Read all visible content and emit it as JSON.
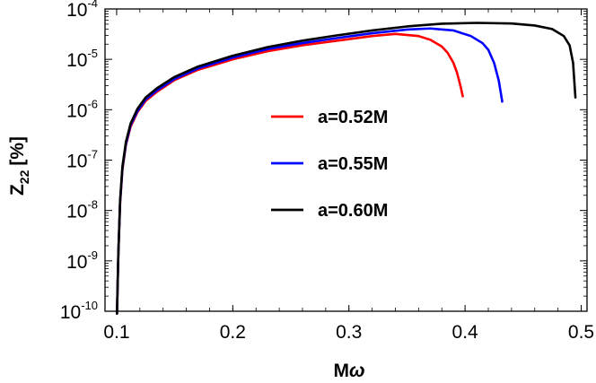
{
  "chart_data": {
    "type": "line",
    "xlabel_base": "M",
    "xlabel_symbol": "ω",
    "ylabel_base": "Z",
    "ylabel_sub": "22",
    "ylabel_unit": "[%]",
    "xlim": [
      0.09,
      0.505
    ],
    "ylim": [
      1e-10,
      0.0001
    ],
    "yscale": "log",
    "x_ticks": [
      {
        "value": 0.1,
        "label": "0.1"
      },
      {
        "value": 0.2,
        "label": "0.2"
      },
      {
        "value": 0.3,
        "label": "0.3"
      },
      {
        "value": 0.4,
        "label": "0.4"
      },
      {
        "value": 0.5,
        "label": "0.5"
      }
    ],
    "y_ticks": [
      {
        "value": 1e-10,
        "base": "10",
        "exp": "-10"
      },
      {
        "value": 1e-09,
        "base": "10",
        "exp": "-9"
      },
      {
        "value": 1e-08,
        "base": "10",
        "exp": "-8"
      },
      {
        "value": 1e-07,
        "base": "10",
        "exp": "-7"
      },
      {
        "value": 1e-06,
        "base": "10",
        "exp": "-6"
      },
      {
        "value": 1e-05,
        "base": "10",
        "exp": "-5"
      },
      {
        "value": 0.0001,
        "base": "10",
        "exp": "-4"
      }
    ],
    "legend_position": "center",
    "grid": false,
    "series": [
      {
        "name": "a=0.52M",
        "color": "#ff0000",
        "x": [
          0.1003,
          0.1015,
          0.103,
          0.105,
          0.108,
          0.112,
          0.118,
          0.125,
          0.135,
          0.15,
          0.17,
          0.2,
          0.23,
          0.26,
          0.29,
          0.32,
          0.34,
          0.36,
          0.37,
          0.38,
          0.385,
          0.39,
          0.393,
          0.396,
          0.398
        ],
        "y": [
          9e-11,
          1.4e-09,
          1.4e-08,
          6.5e-08,
          2e-07,
          4.6e-07,
          9e-07,
          1.5e-06,
          2.3e-06,
          3.9e-06,
          6.2e-06,
          1e-05,
          1.45e-05,
          1.9e-05,
          2.35e-05,
          2.9e-05,
          3.2e-05,
          2.9e-05,
          2.45e-05,
          1.8e-05,
          1.35e-05,
          8.5e-06,
          5.5e-06,
          3e-06,
          1.85e-06
        ]
      },
      {
        "name": "a=0.55M",
        "color": "#0000ff",
        "x": [
          0.1003,
          0.1015,
          0.103,
          0.105,
          0.108,
          0.112,
          0.118,
          0.125,
          0.135,
          0.15,
          0.17,
          0.2,
          0.23,
          0.26,
          0.29,
          0.32,
          0.35,
          0.37,
          0.39,
          0.405,
          0.415,
          0.42,
          0.425,
          0.429,
          0.432
        ],
        "y": [
          9e-11,
          1.45e-09,
          1.5e-08,
          7e-08,
          2.1e-07,
          4.9e-07,
          9.5e-07,
          1.6e-06,
          2.45e-06,
          4.1e-06,
          6.6e-06,
          1.08e-05,
          1.6e-05,
          2.1e-05,
          2.65e-05,
          3.3e-05,
          3.9e-05,
          4.1e-05,
          3.75e-05,
          2.9e-05,
          2.1e-05,
          1.55e-05,
          8.5e-06,
          3.8e-06,
          1.45e-06
        ]
      },
      {
        "name": "a=0.60M",
        "color": "#000000",
        "x": [
          0.1003,
          0.1015,
          0.103,
          0.105,
          0.108,
          0.112,
          0.118,
          0.125,
          0.135,
          0.15,
          0.17,
          0.2,
          0.23,
          0.26,
          0.29,
          0.32,
          0.35,
          0.38,
          0.41,
          0.44,
          0.46,
          0.475,
          0.485,
          0.49,
          0.493,
          0.495
        ],
        "y": [
          9e-11,
          1.5e-09,
          1.6e-08,
          7.5e-08,
          2.3e-07,
          5.3e-07,
          1.05e-06,
          1.75e-06,
          2.7e-06,
          4.5e-06,
          7.2e-06,
          1.18e-05,
          1.75e-05,
          2.35e-05,
          3e-05,
          3.75e-05,
          4.5e-05,
          5.1e-05,
          5.3e-05,
          5.15e-05,
          4.7e-05,
          4e-05,
          2.9e-05,
          1.9e-05,
          8.5e-06,
          1.75e-06
        ]
      }
    ]
  }
}
